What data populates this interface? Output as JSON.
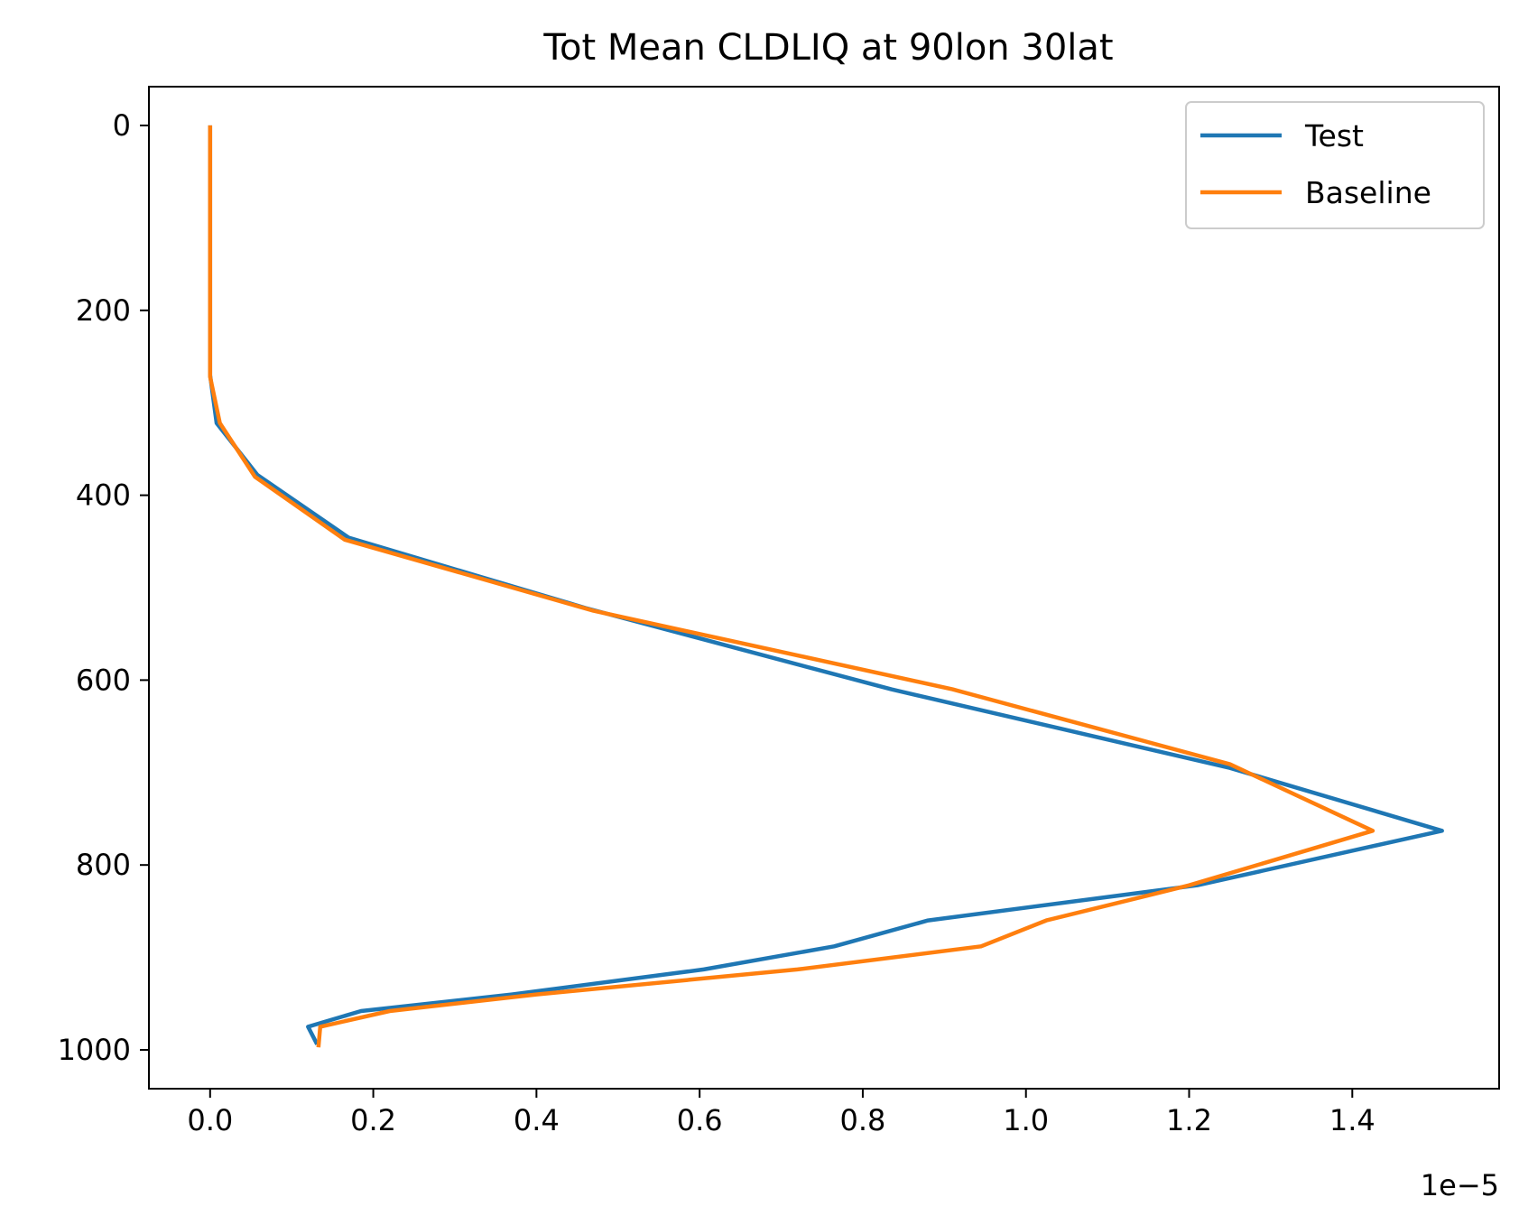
{
  "chart_data": {
    "type": "line",
    "title": "Tot Mean CLDLIQ at 90lon 30lat",
    "xlabel": "",
    "ylabel": "",
    "x_offset_label": "1e−5",
    "xlim": [
      -0.075,
      1.58
    ],
    "ylim": [
      1042,
      -42
    ],
    "y_inverted": true,
    "x_ticks": [
      0.0,
      0.2,
      0.4,
      0.6,
      0.8,
      1.0,
      1.2,
      1.4
    ],
    "x_tick_labels": [
      "0.0",
      "0.2",
      "0.4",
      "0.6",
      "0.8",
      "1.0",
      "1.2",
      "1.4"
    ],
    "y_ticks": [
      0,
      200,
      400,
      600,
      800,
      1000
    ],
    "y_tick_labels": [
      "0",
      "200",
      "400",
      "600",
      "800",
      "1000"
    ],
    "grid": false,
    "legend_position": "top-right",
    "series": [
      {
        "name": "Test",
        "color": "#1f77b4",
        "x": [
          0.0,
          0.0,
          0.0,
          0.0,
          0.0,
          0.0,
          0.0,
          0.008,
          0.058,
          0.17,
          0.46,
          0.835,
          1.25,
          1.51,
          1.21,
          0.88,
          0.765,
          0.605,
          0.37,
          0.185,
          0.12,
          0.13
        ],
        "y": [
          2,
          20,
          50,
          100,
          150,
          200,
          270,
          322,
          378,
          446,
          522,
          610,
          695,
          763,
          822,
          860,
          888,
          913,
          940,
          958,
          975,
          992
        ]
      },
      {
        "name": "Baseline",
        "color": "#ff7f0e",
        "x": [
          0.0,
          0.0,
          0.0,
          0.0,
          0.0,
          0.0,
          0.0,
          0.012,
          0.055,
          0.165,
          0.47,
          0.91,
          1.25,
          1.425,
          1.2,
          1.025,
          0.945,
          0.72,
          0.4,
          0.22,
          0.135,
          0.133
        ],
        "y": [
          2,
          20,
          50,
          100,
          150,
          200,
          272,
          322,
          380,
          448,
          525,
          610,
          691,
          763,
          822,
          860,
          888,
          913,
          940,
          958,
          975,
          995
        ]
      }
    ]
  }
}
